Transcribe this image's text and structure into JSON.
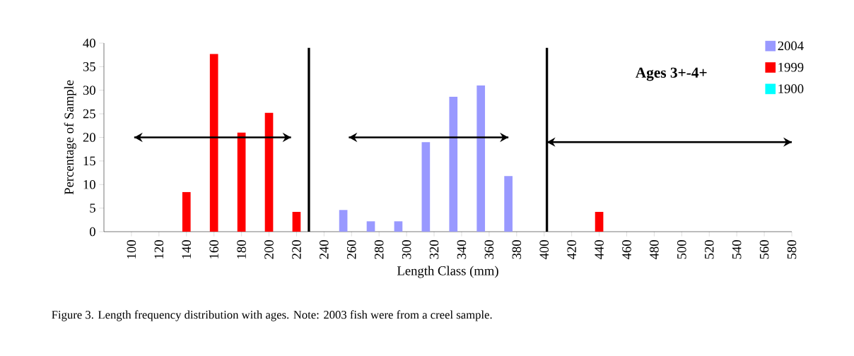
{
  "chart_data": {
    "type": "bar",
    "xlabel": "Length Class  (mm)",
    "ylabel": "Percentage of  Sample",
    "x": [
      100,
      120,
      140,
      160,
      180,
      200,
      220,
      240,
      260,
      280,
      300,
      320,
      340,
      360,
      380,
      400,
      420,
      440,
      460,
      480,
      500,
      520,
      540,
      560,
      580
    ],
    "series": [
      {
        "name": "2004",
        "color": "#9999ff",
        "values": [
          0,
          0,
          0,
          0,
          0,
          0,
          0,
          0,
          4.6,
          2.2,
          2.2,
          19.0,
          28.6,
          31.0,
          11.8,
          0,
          0,
          0,
          0,
          0,
          0,
          0,
          0,
          0,
          0
        ]
      },
      {
        "name": "1999",
        "color": "#ff0000",
        "values": [
          0,
          0,
          8.4,
          37.7,
          21.0,
          25.2,
          4.2,
          0,
          0,
          0,
          0,
          0,
          0,
          0,
          0,
          0,
          0,
          4.2,
          0,
          0,
          0,
          0,
          0,
          0,
          0
        ]
      },
      {
        "name": "1900",
        "color": "#00ffff",
        "values": [
          0,
          0,
          0,
          0,
          0,
          0,
          0,
          0,
          0,
          0,
          0,
          0,
          0,
          0,
          0,
          0,
          0,
          0,
          0,
          0,
          0,
          0,
          0,
          0,
          0
        ]
      },
      {
        "type": "line",
        "color": "#000000",
        "x": [
          102,
          216
        ],
        "values": [
          20,
          20
        ]
      },
      {
        "type": "line",
        "color": "#000000",
        "x": [
          258,
          374
        ],
        "values": [
          20,
          20
        ]
      },
      {
        "type": "line",
        "color": "#000000",
        "x": [
          402,
          580
        ],
        "values": [
          19,
          19
        ]
      }
    ],
    "xlim": [
      80,
      580
    ],
    "xticks": [
      100,
      120,
      140,
      160,
      180,
      200,
      220,
      240,
      260,
      280,
      300,
      320,
      340,
      360,
      380,
      400,
      420,
      440,
      460,
      480,
      500,
      520,
      540,
      560,
      580
    ],
    "ylim": [
      0,
      40
    ],
    "yticks": [
      0,
      5,
      10,
      15,
      20,
      25,
      30,
      35,
      40
    ],
    "ref_lines": [
      {
        "axis": "x",
        "value": 229,
        "color": "#000000"
      },
      {
        "axis": "x",
        "value": 402,
        "color": "#000000"
      }
    ],
    "legend": "top right",
    "annotations": [
      "Ages 3+-4+",
      "Figure 3. Length frequency distribution with ages. Note: 2003 fish were from a creel sample."
    ]
  }
}
